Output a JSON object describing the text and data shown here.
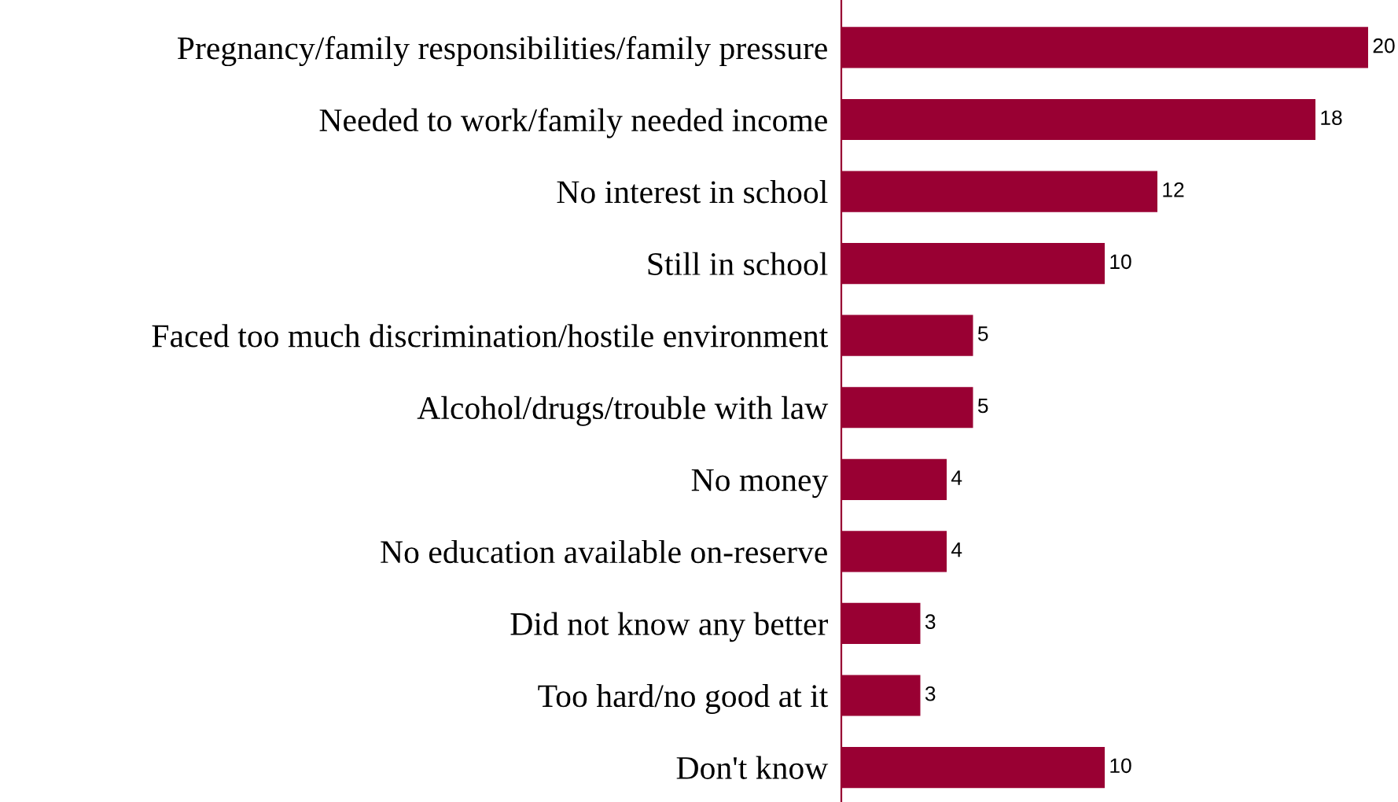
{
  "chart_data": {
    "type": "bar",
    "orientation": "horizontal",
    "data_labels": true,
    "color": "#990033",
    "categories": [
      "Pregnancy/family responsibilities/family pressure",
      "Needed to work/family needed income",
      "No interest in school",
      "Still in school",
      "Faced too much discrimination/hostile environment",
      "Alcohol/drugs/trouble with law",
      "No money",
      "No education available on-reserve",
      "Did not know any better",
      "Too hard/no good at it",
      "Don't know"
    ],
    "values": [
      20,
      18,
      12,
      10,
      5,
      5,
      4,
      4,
      3,
      3,
      10
    ]
  }
}
